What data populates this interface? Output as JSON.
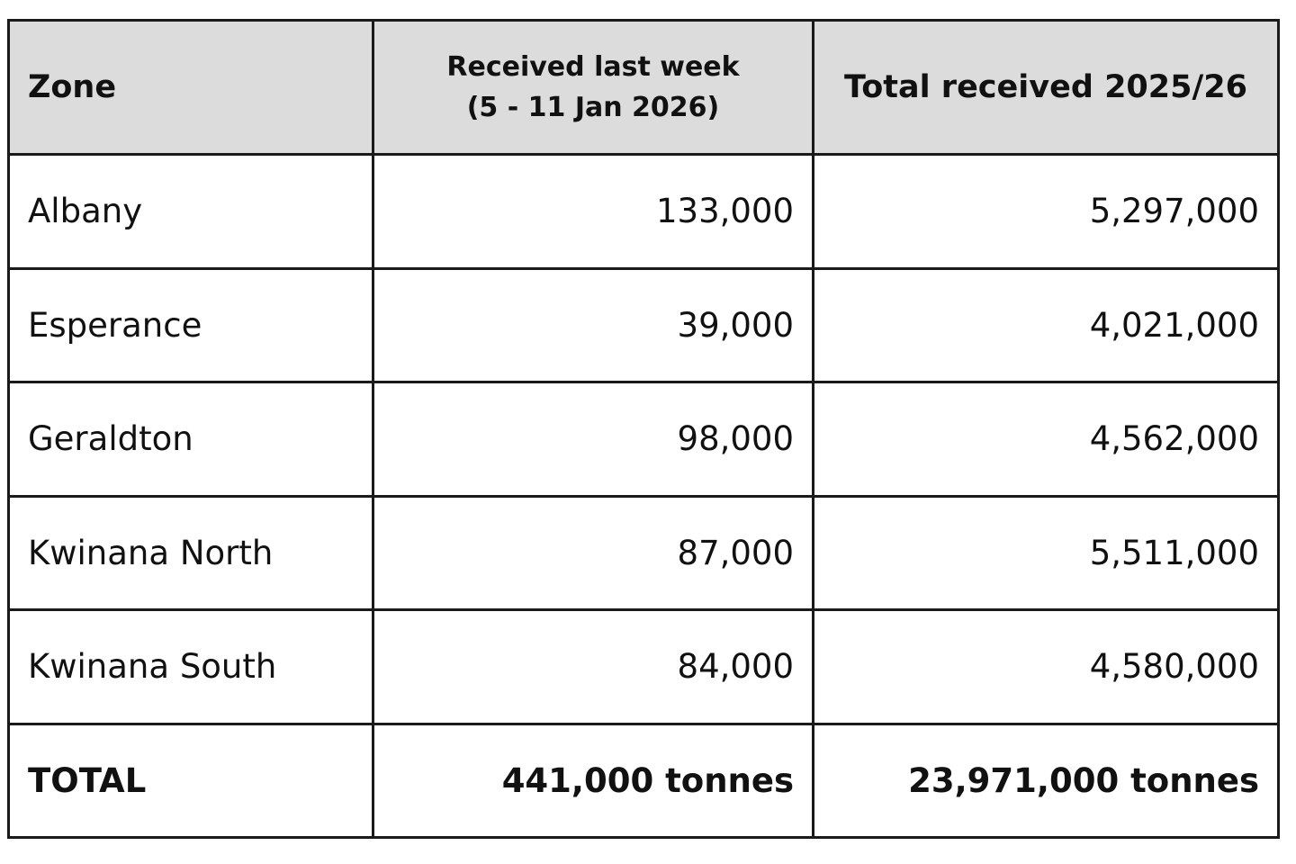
{
  "table": {
    "header": [
      "Zone",
      [
        "Received last week",
        "(5 - 11 Jan 2026)"
      ],
      "Total received 2025/26"
    ],
    "rows": [
      [
        "Albany",
        "133,000",
        "5,297,000"
      ],
      [
        "Esperance",
        "39,000",
        "4,021,000"
      ],
      [
        "Geraldton",
        "98,000",
        "4,562,000"
      ],
      [
        "Kwinana North",
        "87,000",
        "5,511,000"
      ],
      [
        "Kwinana South",
        "84,000",
        "4,580,000"
      ]
    ],
    "total": [
      "TOTAL",
      "441,000 tonnes",
      "23,971,000 tonnes"
    ]
  }
}
